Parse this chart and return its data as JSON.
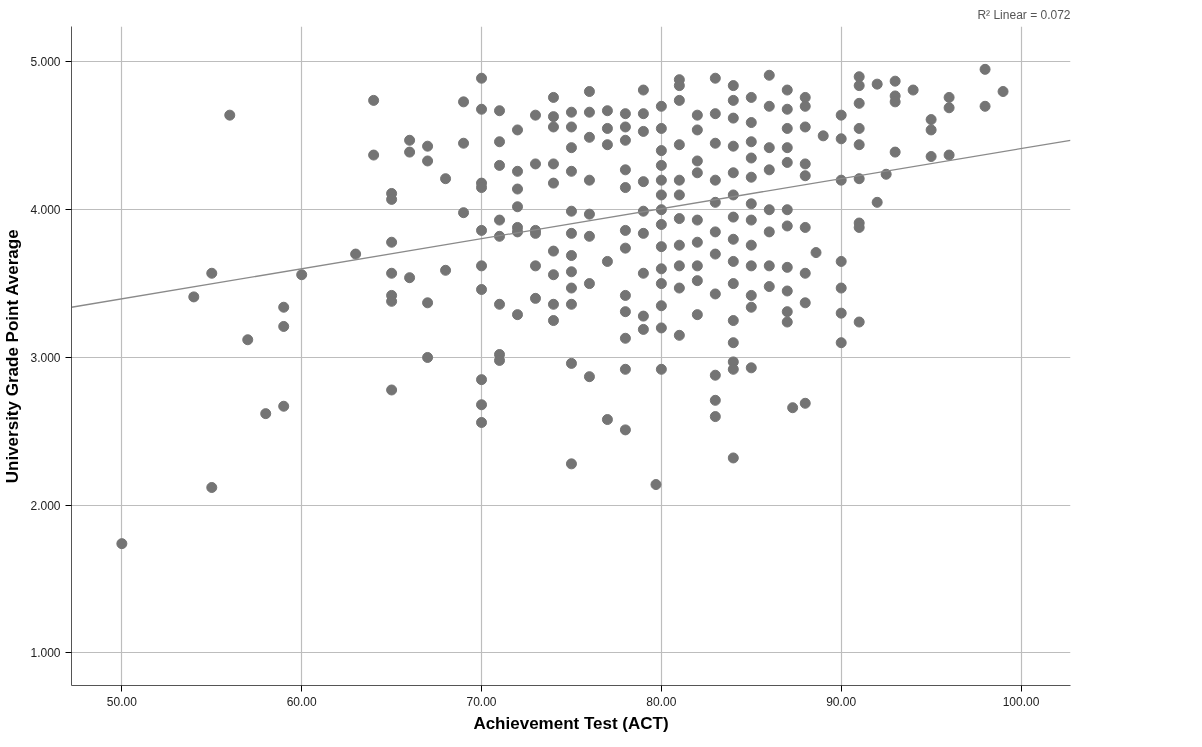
{
  "chart_data": {
    "type": "scatter",
    "xlabel": "Achievement Test (ACT)",
    "ylabel": "University Grade Point Average",
    "xlim": [
      47.2,
      102.75
    ],
    "ylim": [
      0.78,
      5.24
    ],
    "xticks": [
      {
        "value": 50,
        "label": "50.00"
      },
      {
        "value": 60,
        "label": "60.00"
      },
      {
        "value": 70,
        "label": "70.00"
      },
      {
        "value": 80,
        "label": "80.00"
      },
      {
        "value": 90,
        "label": "90.00"
      },
      {
        "value": 100,
        "label": "100.00"
      }
    ],
    "yticks": [
      {
        "value": 1,
        "label": "1.000"
      },
      {
        "value": 2,
        "label": "2.000"
      },
      {
        "value": 3,
        "label": "3.000"
      },
      {
        "value": 4,
        "label": "4.000"
      },
      {
        "value": 5,
        "label": "5.000"
      }
    ],
    "grid": true,
    "annotations": [
      "R² Linear = 0.072"
    ],
    "series": [
      {
        "color": "#747474",
        "marker": "circle",
        "x": [
          50,
          54,
          55,
          55,
          56,
          57,
          58,
          59,
          59,
          59,
          60,
          63,
          64,
          64,
          65,
          65,
          65,
          65,
          65,
          65,
          65,
          66,
          66,
          66,
          67,
          67,
          67,
          67,
          68,
          68,
          69,
          69,
          69,
          70,
          70,
          70,
          70,
          70,
          70,
          70,
          70,
          70,
          70,
          71,
          71,
          71,
          71,
          71,
          71,
          71,
          71,
          72,
          72,
          72,
          72,
          72,
          72,
          72,
          73,
          73,
          73,
          73,
          73,
          73,
          74,
          74,
          74,
          74,
          74,
          74,
          74,
          74,
          74,
          75,
          75,
          75,
          75,
          75,
          75,
          75,
          75,
          75,
          75,
          75,
          75,
          76,
          76,
          76,
          76,
          76,
          76,
          76,
          76,
          77,
          77,
          77,
          77,
          77,
          78,
          78,
          78,
          78,
          78,
          78,
          78,
          78,
          78,
          78,
          78,
          78,
          79,
          79,
          79,
          79,
          79,
          79,
          79,
          79,
          79,
          79.7,
          80,
          80,
          80,
          80,
          80,
          80,
          80,
          80,
          80,
          80,
          80,
          80,
          80,
          80,
          81,
          81,
          81,
          81,
          81,
          81,
          81,
          81,
          81,
          81,
          81,
          82,
          82,
          82,
          82,
          82,
          82,
          82,
          82,
          82,
          83,
          83,
          83,
          83,
          83,
          83,
          83,
          83,
          83,
          83,
          83,
          84,
          84,
          84,
          84,
          84,
          84,
          84,
          84,
          84,
          84,
          84,
          84,
          84,
          84,
          84,
          85,
          85,
          85,
          85,
          85,
          85,
          85,
          85,
          85,
          85,
          85,
          85,
          86,
          86,
          86,
          86,
          86,
          86,
          86,
          86,
          87,
          87,
          87,
          87,
          87,
          87,
          87,
          87,
          87,
          87,
          87,
          87.3,
          88,
          88,
          88,
          88,
          88,
          88,
          88,
          88,
          88,
          88.6,
          89,
          90,
          90,
          90,
          90,
          90,
          90,
          90,
          91,
          91,
          91,
          91,
          91,
          91,
          91,
          91,
          91,
          92,
          92,
          92.5,
          93,
          93,
          93,
          93,
          94,
          95,
          95,
          95,
          96,
          96,
          96,
          98,
          98,
          99
        ],
        "values": [
          1.74,
          3.41,
          3.57,
          2.12,
          4.64,
          3.12,
          2.62,
          3.34,
          3.21,
          2.67,
          3.56,
          3.7,
          4.74,
          4.37,
          4.11,
          4.07,
          3.78,
          3.57,
          3.42,
          3.38,
          2.78,
          4.47,
          4.39,
          3.54,
          4.43,
          4.33,
          3.37,
          3.0,
          4.21,
          3.59,
          4.73,
          4.45,
          3.98,
          4.89,
          4.68,
          4.18,
          4.15,
          3.86,
          3.62,
          3.46,
          2.85,
          2.68,
          2.56,
          4.67,
          4.46,
          4.3,
          3.93,
          3.82,
          3.36,
          3.02,
          2.98,
          4.54,
          4.26,
          4.14,
          4.02,
          3.88,
          3.85,
          3.29,
          4.64,
          4.31,
          3.86,
          3.84,
          3.62,
          3.4,
          4.76,
          4.63,
          4.56,
          4.31,
          4.18,
          3.72,
          3.56,
          3.36,
          3.25,
          4.66,
          4.56,
          4.42,
          4.26,
          3.99,
          3.84,
          3.69,
          3.58,
          3.47,
          3.36,
          2.96,
          2.28,
          4.8,
          4.66,
          4.49,
          4.2,
          3.97,
          3.82,
          3.5,
          2.87,
          4.67,
          4.55,
          4.44,
          3.65,
          2.58,
          4.65,
          4.56,
          4.47,
          4.27,
          4.15,
          3.86,
          3.74,
          3.42,
          3.31,
          3.13,
          2.92,
          2.51,
          4.81,
          4.65,
          4.53,
          4.19,
          3.99,
          3.84,
          3.57,
          3.28,
          3.19,
          2.14,
          4.7,
          4.55,
          4.4,
          4.3,
          4.2,
          4.1,
          4.0,
          3.9,
          3.75,
          3.6,
          3.5,
          3.35,
          3.2,
          2.92,
          4.88,
          4.84,
          4.74,
          4.44,
          4.2,
          4.1,
          3.94,
          3.76,
          3.62,
          3.47,
          3.15,
          4.64,
          4.54,
          4.33,
          4.25,
          3.93,
          3.78,
          3.62,
          3.52,
          3.29,
          4.89,
          4.65,
          4.45,
          4.2,
          4.05,
          3.85,
          3.7,
          3.43,
          2.88,
          2.71,
          2.6,
          4.84,
          4.74,
          4.62,
          4.43,
          4.25,
          4.1,
          3.95,
          3.8,
          3.65,
          3.5,
          3.25,
          3.1,
          2.97,
          2.92,
          2.32,
          4.76,
          4.59,
          4.46,
          4.35,
          4.22,
          4.04,
          3.93,
          3.76,
          3.62,
          3.42,
          3.34,
          2.93,
          4.91,
          4.7,
          4.42,
          4.27,
          4.0,
          3.85,
          3.62,
          3.48,
          4.81,
          4.68,
          4.55,
          4.42,
          4.32,
          4.0,
          3.89,
          3.61,
          3.45,
          3.31,
          3.24,
          2.66,
          4.76,
          4.7,
          4.56,
          4.31,
          4.23,
          3.88,
          3.57,
          3.37,
          2.69,
          3.71,
          4.5,
          4.64,
          4.48,
          4.2,
          3.65,
          3.47,
          3.3,
          3.1,
          4.9,
          4.84,
          4.72,
          4.55,
          4.44,
          4.21,
          3.91,
          3.88,
          3.24,
          4.85,
          4.05,
          4.24,
          4.87,
          4.77,
          4.73,
          4.39,
          4.81,
          4.61,
          4.54,
          4.36,
          4.76,
          4.69,
          4.37,
          4.95,
          4.7,
          4.8
        ]
      },
      {
        "type": "line",
        "marker": "none",
        "color": "#8a8a8a",
        "x": [
          47.2,
          102.75
        ],
        "values": [
          3.34,
          4.47
        ]
      }
    ]
  }
}
